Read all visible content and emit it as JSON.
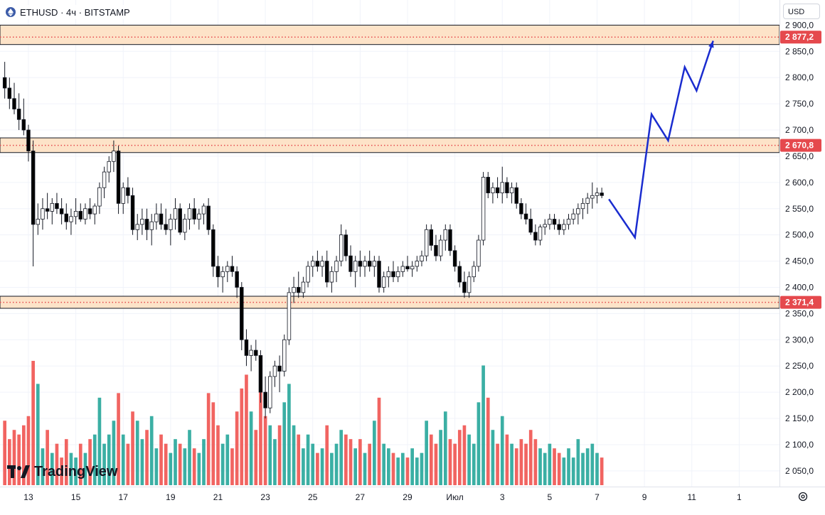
{
  "header": {
    "symbol": "ETHUSD",
    "separator1": "·",
    "interval": "4ч",
    "separator2": "·",
    "exchange": "BITSTAMP",
    "currency_button": "USD"
  },
  "brand": {
    "logo_text": "TradingView",
    "logo_icon": "tradingview-logo-icon"
  },
  "colors": {
    "up": "#26a69a",
    "down": "#ef5350",
    "candle_up_fill": "#ffffff",
    "candle_down_fill": "#000000",
    "zone_fill": "#fde3c8",
    "zone_dots": "#e5494d",
    "forecast": "#1a2ccf",
    "price_label_bg": "#e5494d"
  },
  "chart_data": {
    "type": "candlestick",
    "y_axis": {
      "range": [
        2020,
        2910
      ],
      "ticks": [
        "2 900,0",
        "2 850,0",
        "2 800,0",
        "2 750,0",
        "2 700,0",
        "2 650,0",
        "2 600,0",
        "2 550,0",
        "2 500,0",
        "2 450,0",
        "2 400,0",
        "2 350,0",
        "2 300,0",
        "2 250,0",
        "2 200,0",
        "2 150,0",
        "2 100,0",
        "2 050,0"
      ],
      "tick_values": [
        2900,
        2850,
        2800,
        2750,
        2700,
        2650,
        2600,
        2550,
        2500,
        2450,
        2400,
        2350,
        2300,
        2250,
        2200,
        2150,
        2100,
        2050
      ]
    },
    "x_axis": {
      "labels": [
        "13",
        "15",
        "17",
        "19",
        "21",
        "23",
        "25",
        "27",
        "29",
        "Июл",
        "3",
        "5",
        "7",
        "9",
        "11",
        "1"
      ],
      "label_days": [
        13,
        15,
        17,
        19,
        21,
        23,
        25,
        27,
        29,
        31,
        33,
        35,
        37,
        39,
        41,
        43
      ],
      "range_days": [
        11.8,
        44.7
      ]
    },
    "horizontal_zones": [
      {
        "label": "2 877,2",
        "value": 2877.2,
        "top": 2900,
        "bottom": 2863
      },
      {
        "label": "2 670,8",
        "value": 2670.8,
        "top": 2685,
        "bottom": 2657
      },
      {
        "label": "2 371,4",
        "value": 2371.4,
        "top": 2383,
        "bottom": 2360
      }
    ],
    "candles": [
      [
        12.0,
        2800,
        2830,
        2760,
        2780,
        140
      ],
      [
        12.2,
        2780,
        2800,
        2740,
        2760,
        100
      ],
      [
        12.4,
        2760,
        2790,
        2730,
        2740,
        120
      ],
      [
        12.6,
        2740,
        2770,
        2700,
        2720,
        110
      ],
      [
        12.8,
        2720,
        2760,
        2690,
        2700,
        130
      ],
      [
        13.0,
        2700,
        2710,
        2640,
        2660,
        150
      ],
      [
        13.2,
        2660,
        2680,
        2440,
        2520,
        270
      ],
      [
        13.4,
        2520,
        2560,
        2500,
        2530,
        220
      ],
      [
        13.6,
        2530,
        2570,
        2510,
        2550,
        80
      ],
      [
        13.8,
        2550,
        2580,
        2530,
        2545,
        120
      ],
      [
        14.0,
        2545,
        2570,
        2520,
        2560,
        70
      ],
      [
        14.2,
        2560,
        2580,
        2540,
        2550,
        90
      ],
      [
        14.4,
        2550,
        2570,
        2520,
        2540,
        60
      ],
      [
        14.6,
        2540,
        2560,
        2510,
        2525,
        100
      ],
      [
        14.8,
        2525,
        2550,
        2500,
        2535,
        70
      ],
      [
        15.0,
        2535,
        2570,
        2520,
        2545,
        60
      ],
      [
        15.2,
        2545,
        2560,
        2525,
        2530,
        90
      ],
      [
        15.4,
        2530,
        2560,
        2520,
        2550,
        70
      ],
      [
        15.6,
        2550,
        2570,
        2530,
        2540,
        100
      ],
      [
        15.8,
        2540,
        2560,
        2520,
        2555,
        110
      ],
      [
        16.0,
        2555,
        2600,
        2540,
        2590,
        190
      ],
      [
        16.2,
        2590,
        2630,
        2570,
        2620,
        90
      ],
      [
        16.4,
        2620,
        2650,
        2600,
        2640,
        110
      ],
      [
        16.6,
        2640,
        2680,
        2620,
        2660,
        140
      ],
      [
        16.8,
        2660,
        2670,
        2540,
        2560,
        200
      ],
      [
        17.0,
        2560,
        2600,
        2540,
        2590,
        110
      ],
      [
        17.2,
        2590,
        2610,
        2560,
        2575,
        90
      ],
      [
        17.4,
        2575,
        2590,
        2500,
        2510,
        160
      ],
      [
        17.6,
        2510,
        2540,
        2490,
        2520,
        140
      ],
      [
        17.8,
        2520,
        2550,
        2500,
        2530,
        100
      ],
      [
        18.0,
        2530,
        2550,
        2490,
        2510,
        120
      ],
      [
        18.2,
        2510,
        2540,
        2480,
        2525,
        150
      ],
      [
        18.4,
        2525,
        2560,
        2510,
        2540,
        80
      ],
      [
        18.6,
        2540,
        2560,
        2510,
        2520,
        110
      ],
      [
        18.8,
        2520,
        2550,
        2500,
        2510,
        90
      ],
      [
        19.0,
        2510,
        2540,
        2480,
        2530,
        70
      ],
      [
        19.2,
        2530,
        2570,
        2510,
        2550,
        100
      ],
      [
        19.4,
        2550,
        2560,
        2500,
        2505,
        90
      ],
      [
        19.6,
        2505,
        2540,
        2490,
        2530,
        80
      ],
      [
        19.8,
        2530,
        2560,
        2510,
        2550,
        120
      ],
      [
        20.0,
        2550,
        2570,
        2520,
        2530,
        80
      ],
      [
        20.2,
        2530,
        2550,
        2510,
        2540,
        70
      ],
      [
        20.4,
        2540,
        2560,
        2520,
        2555,
        100
      ],
      [
        20.6,
        2555,
        2570,
        2500,
        2510,
        200
      ],
      [
        20.8,
        2510,
        2520,
        2420,
        2440,
        180
      ],
      [
        21.0,
        2440,
        2460,
        2400,
        2420,
        130
      ],
      [
        21.2,
        2420,
        2440,
        2390,
        2430,
        90
      ],
      [
        21.4,
        2430,
        2450,
        2410,
        2440,
        110
      ],
      [
        21.6,
        2440,
        2460,
        2420,
        2430,
        80
      ],
      [
        21.8,
        2430,
        2440,
        2380,
        2400,
        160
      ],
      [
        22.0,
        2400,
        2410,
        2280,
        2300,
        210
      ],
      [
        22.2,
        2300,
        2320,
        2250,
        2270,
        240
      ],
      [
        22.4,
        2270,
        2290,
        2240,
        2280,
        160
      ],
      [
        22.6,
        2280,
        2300,
        2260,
        2270,
        120
      ],
      [
        22.8,
        2270,
        2280,
        2180,
        2200,
        210
      ],
      [
        23.0,
        2200,
        2230,
        2150,
        2170,
        150
      ],
      [
        23.2,
        2170,
        2240,
        2160,
        2230,
        130
      ],
      [
        23.4,
        2230,
        2260,
        2210,
        2250,
        100
      ],
      [
        23.6,
        2250,
        2270,
        2200,
        2240,
        130
      ],
      [
        23.8,
        2240,
        2310,
        2230,
        2300,
        180
      ],
      [
        24.0,
        2300,
        2400,
        2290,
        2390,
        220
      ],
      [
        24.2,
        2390,
        2420,
        2370,
        2400,
        130
      ],
      [
        24.4,
        2400,
        2430,
        2380,
        2390,
        110
      ],
      [
        24.6,
        2390,
        2420,
        2380,
        2410,
        80
      ],
      [
        24.8,
        2410,
        2450,
        2400,
        2440,
        110
      ],
      [
        25.0,
        2440,
        2460,
        2420,
        2450,
        90
      ],
      [
        25.2,
        2450,
        2470,
        2430,
        2440,
        70
      ],
      [
        25.4,
        2440,
        2460,
        2420,
        2450,
        80
      ],
      [
        25.6,
        2450,
        2470,
        2400,
        2410,
        130
      ],
      [
        25.8,
        2410,
        2440,
        2390,
        2430,
        70
      ],
      [
        26.0,
        2430,
        2460,
        2410,
        2450,
        90
      ],
      [
        26.2,
        2450,
        2520,
        2440,
        2500,
        120
      ],
      [
        26.4,
        2500,
        2510,
        2450,
        2460,
        110
      ],
      [
        26.6,
        2460,
        2480,
        2420,
        2430,
        100
      ],
      [
        26.8,
        2430,
        2460,
        2400,
        2450,
        80
      ],
      [
        27.0,
        2450,
        2470,
        2420,
        2440,
        100
      ],
      [
        27.2,
        2440,
        2460,
        2420,
        2450,
        70
      ],
      [
        27.4,
        2450,
        2470,
        2430,
        2440,
        90
      ],
      [
        27.6,
        2440,
        2460,
        2420,
        2450,
        140
      ],
      [
        27.8,
        2450,
        2460,
        2390,
        2400,
        190
      ],
      [
        28.0,
        2400,
        2430,
        2390,
        2420,
        90
      ],
      [
        28.2,
        2420,
        2440,
        2400,
        2430,
        80
      ],
      [
        28.4,
        2430,
        2450,
        2410,
        2420,
        70
      ],
      [
        28.6,
        2420,
        2440,
        2410,
        2430,
        60
      ],
      [
        28.8,
        2430,
        2450,
        2420,
        2440,
        70
      ],
      [
        29.0,
        2440,
        2460,
        2430,
        2435,
        60
      ],
      [
        29.2,
        2435,
        2450,
        2420,
        2440,
        80
      ],
      [
        29.4,
        2440,
        2460,
        2430,
        2450,
        60
      ],
      [
        29.6,
        2450,
        2470,
        2440,
        2460,
        70
      ],
      [
        29.8,
        2460,
        2520,
        2450,
        2510,
        140
      ],
      [
        30.0,
        2510,
        2520,
        2470,
        2480,
        110
      ],
      [
        30.2,
        2480,
        2500,
        2450,
        2460,
        90
      ],
      [
        30.4,
        2460,
        2500,
        2450,
        2490,
        120
      ],
      [
        30.6,
        2490,
        2520,
        2470,
        2510,
        160
      ],
      [
        30.8,
        2510,
        2520,
        2460,
        2470,
        100
      ],
      [
        31.0,
        2470,
        2480,
        2430,
        2440,
        90
      ],
      [
        31.2,
        2440,
        2450,
        2400,
        2410,
        120
      ],
      [
        31.4,
        2410,
        2430,
        2380,
        2390,
        130
      ],
      [
        31.6,
        2390,
        2430,
        2380,
        2420,
        110
      ],
      [
        31.8,
        2420,
        2450,
        2410,
        2440,
        90
      ],
      [
        32.0,
        2440,
        2500,
        2430,
        2490,
        180
      ],
      [
        32.2,
        2490,
        2620,
        2480,
        2610,
        260
      ],
      [
        32.4,
        2610,
        2620,
        2570,
        2580,
        190
      ],
      [
        32.6,
        2580,
        2600,
        2560,
        2590,
        120
      ],
      [
        32.8,
        2590,
        2610,
        2570,
        2580,
        90
      ],
      [
        33.0,
        2580,
        2630,
        2560,
        2600,
        150
      ],
      [
        33.2,
        2600,
        2610,
        2570,
        2580,
        110
      ],
      [
        33.4,
        2580,
        2600,
        2560,
        2590,
        90
      ],
      [
        33.6,
        2590,
        2600,
        2550,
        2560,
        80
      ],
      [
        33.8,
        2560,
        2570,
        2530,
        2540,
        100
      ],
      [
        34.0,
        2540,
        2560,
        2520,
        2530,
        90
      ],
      [
        34.2,
        2530,
        2550,
        2500,
        2505,
        120
      ],
      [
        34.4,
        2505,
        2520,
        2480,
        2490,
        100
      ],
      [
        34.6,
        2490,
        2520,
        2480,
        2515,
        80
      ],
      [
        34.8,
        2515,
        2530,
        2500,
        2520,
        70
      ],
      [
        35.0,
        2520,
        2540,
        2510,
        2530,
        90
      ],
      [
        35.2,
        2530,
        2540,
        2510,
        2520,
        80
      ],
      [
        35.4,
        2520,
        2530,
        2500,
        2510,
        70
      ],
      [
        35.6,
        2510,
        2530,
        2500,
        2520,
        60
      ],
      [
        35.8,
        2520,
        2540,
        2510,
        2530,
        80
      ],
      [
        36.0,
        2530,
        2550,
        2520,
        2540,
        60
      ],
      [
        36.2,
        2540,
        2560,
        2520,
        2550,
        100
      ],
      [
        36.4,
        2550,
        2570,
        2530,
        2560,
        70
      ],
      [
        36.6,
        2560,
        2580,
        2540,
        2570,
        80
      ],
      [
        36.8,
        2570,
        2600,
        2550,
        2575,
        90
      ],
      [
        37.0,
        2575,
        2590,
        2560,
        2580,
        70
      ],
      [
        37.2,
        2580,
        2590,
        2570,
        2575,
        60
      ]
    ],
    "forecast_path": [
      [
        37.5,
        2568
      ],
      [
        38.6,
        2495
      ],
      [
        39.3,
        2730
      ],
      [
        40.0,
        2680
      ],
      [
        40.7,
        2820
      ],
      [
        41.2,
        2775
      ],
      [
        41.9,
        2870
      ]
    ]
  }
}
